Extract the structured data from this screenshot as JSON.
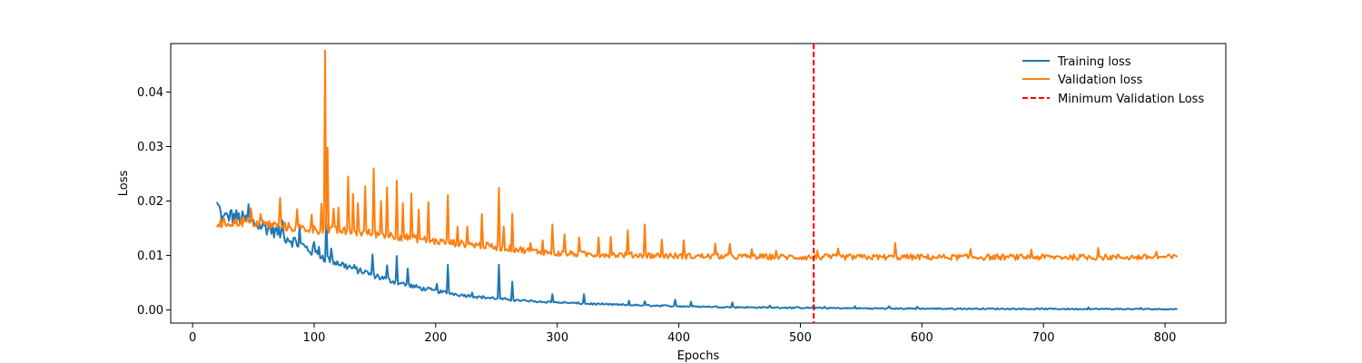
{
  "chart_data": {
    "type": "line",
    "title": "",
    "xlabel": "Epochs",
    "ylabel": "Loss",
    "xlim": [
      -18,
      850
    ],
    "ylim": [
      -0.0024,
      0.0489
    ],
    "x_ticks": [
      0,
      100,
      200,
      300,
      400,
      500,
      600,
      700,
      800
    ],
    "x_tick_labels": [
      "0",
      "100",
      "200",
      "300",
      "400",
      "500",
      "600",
      "700",
      "800"
    ],
    "y_ticks": [
      0.0,
      0.01,
      0.02,
      0.03,
      0.04
    ],
    "y_tick_labels": [
      "0.00",
      "0.01",
      "0.02",
      "0.03",
      "0.04"
    ],
    "grid": false,
    "legend_position": "top-right",
    "x_start": 20,
    "x_end": 810,
    "series": [
      {
        "name": "Training loss",
        "color": "#1f77b4",
        "anchors": [
          [
            20,
            0.0193
          ],
          [
            25,
            0.0165
          ],
          [
            30,
            0.0172
          ],
          [
            40,
            0.0168
          ],
          [
            50,
            0.016
          ],
          [
            60,
            0.0152
          ],
          [
            70,
            0.0143
          ],
          [
            80,
            0.013
          ],
          [
            90,
            0.0118
          ],
          [
            100,
            0.0106
          ],
          [
            110,
            0.0095
          ],
          [
            120,
            0.0086
          ],
          [
            130,
            0.0078
          ],
          [
            140,
            0.007
          ],
          [
            150,
            0.0063
          ],
          [
            160,
            0.0056
          ],
          [
            170,
            0.005
          ],
          [
            180,
            0.0044
          ],
          [
            190,
            0.0039
          ],
          [
            200,
            0.0035
          ],
          [
            220,
            0.0028
          ],
          [
            240,
            0.0023
          ],
          [
            260,
            0.0019
          ],
          [
            280,
            0.0016
          ],
          [
            300,
            0.0014
          ],
          [
            330,
            0.0011
          ],
          [
            360,
            0.0009
          ],
          [
            400,
            0.0007
          ],
          [
            450,
            0.0005
          ],
          [
            500,
            0.0004
          ],
          [
            550,
            0.0003
          ],
          [
            600,
            0.00025
          ],
          [
            700,
            0.0002
          ],
          [
            810,
            0.00015
          ]
        ],
        "noise_rel": 0.09,
        "noise_abs": 0.00012,
        "spikes": [
          [
            22,
            0.0191
          ],
          [
            27,
            0.0178
          ],
          [
            31,
            0.0182
          ],
          [
            46,
            0.0194
          ],
          [
            74,
            0.0164
          ],
          [
            88,
            0.0153
          ],
          [
            100,
            0.0125
          ],
          [
            104,
            0.0116
          ],
          [
            110,
            0.0174
          ],
          [
            114,
            0.0113
          ],
          [
            148,
            0.0102
          ],
          [
            160,
            0.0082
          ],
          [
            168,
            0.0099
          ],
          [
            177,
            0.0076
          ],
          [
            201,
            0.0048
          ],
          [
            210,
            0.0083
          ],
          [
            230,
            0.0032
          ],
          [
            252,
            0.0083
          ],
          [
            263,
            0.0052
          ],
          [
            296,
            0.0029
          ],
          [
            322,
            0.0029
          ],
          [
            359,
            0.0017
          ],
          [
            372,
            0.0016
          ],
          [
            397,
            0.0019
          ],
          [
            410,
            0.0015
          ],
          [
            444,
            0.0014
          ],
          [
            475,
            0.0008
          ],
          [
            511,
            0.0009
          ],
          [
            520,
            0.0006
          ],
          [
            545,
            0.0007
          ],
          [
            573,
            0.0007
          ],
          [
            596,
            0.0006
          ],
          [
            737,
            0.0005
          ],
          [
            780,
            0.0004
          ]
        ]
      },
      {
        "name": "Validation loss",
        "color": "#ff7f0e",
        "anchors": [
          [
            20,
            0.0158
          ],
          [
            40,
            0.0162
          ],
          [
            60,
            0.0158
          ],
          [
            80,
            0.0152
          ],
          [
            100,
            0.0148
          ],
          [
            120,
            0.0145
          ],
          [
            140,
            0.0142
          ],
          [
            160,
            0.0138
          ],
          [
            180,
            0.0132
          ],
          [
            200,
            0.0126
          ],
          [
            220,
            0.0122
          ],
          [
            240,
            0.0118
          ],
          [
            260,
            0.0113
          ],
          [
            280,
            0.0108
          ],
          [
            300,
            0.0104
          ],
          [
            330,
            0.0102
          ],
          [
            360,
            0.0101
          ],
          [
            400,
            0.0099
          ],
          [
            450,
            0.0098
          ],
          [
            500,
            0.0097
          ],
          [
            600,
            0.0097
          ],
          [
            700,
            0.0097
          ],
          [
            810,
            0.0097
          ]
        ],
        "noise_rel": 0.055,
        "noise_abs": 0.0,
        "spikes": [
          [
            48,
            0.0187
          ],
          [
            56,
            0.0176
          ],
          [
            72,
            0.0206
          ],
          [
            86,
            0.0185
          ],
          [
            98,
            0.0175
          ],
          [
            106,
            0.0195
          ],
          [
            109,
            0.0476
          ],
          [
            111,
            0.0298
          ],
          [
            116,
            0.0186
          ],
          [
            120,
            0.0188
          ],
          [
            128,
            0.0245
          ],
          [
            132,
            0.0213
          ],
          [
            136,
            0.0196
          ],
          [
            142,
            0.0227
          ],
          [
            149,
            0.026
          ],
          [
            155,
            0.02
          ],
          [
            160,
            0.0225
          ],
          [
            168,
            0.0237
          ],
          [
            173,
            0.0196
          ],
          [
            180,
            0.0214
          ],
          [
            186,
            0.0184
          ],
          [
            194,
            0.0198
          ],
          [
            210,
            0.0211
          ],
          [
            218,
            0.0153
          ],
          [
            226,
            0.0153
          ],
          [
            238,
            0.0176
          ],
          [
            252,
            0.0224
          ],
          [
            256,
            0.0153
          ],
          [
            263,
            0.0177
          ],
          [
            278,
            0.0123
          ],
          [
            288,
            0.0128
          ],
          [
            296,
            0.0157
          ],
          [
            306,
            0.0139
          ],
          [
            318,
            0.0133
          ],
          [
            334,
            0.0133
          ],
          [
            344,
            0.0134
          ],
          [
            358,
            0.0146
          ],
          [
            372,
            0.0157
          ],
          [
            386,
            0.0129
          ],
          [
            404,
            0.0128
          ],
          [
            430,
            0.0122
          ],
          [
            442,
            0.0121
          ],
          [
            460,
            0.0112
          ],
          [
            480,
            0.0109
          ],
          [
            514,
            0.0109
          ],
          [
            531,
            0.0113
          ],
          [
            578,
            0.0123
          ],
          [
            640,
            0.0112
          ],
          [
            690,
            0.0111
          ],
          [
            745,
            0.0114
          ],
          [
            793,
            0.0107
          ]
        ]
      }
    ],
    "marker_line": {
      "name": "Minimum Validation Loss",
      "x": 511,
      "color": "#ff0000",
      "style": "dashed"
    }
  }
}
